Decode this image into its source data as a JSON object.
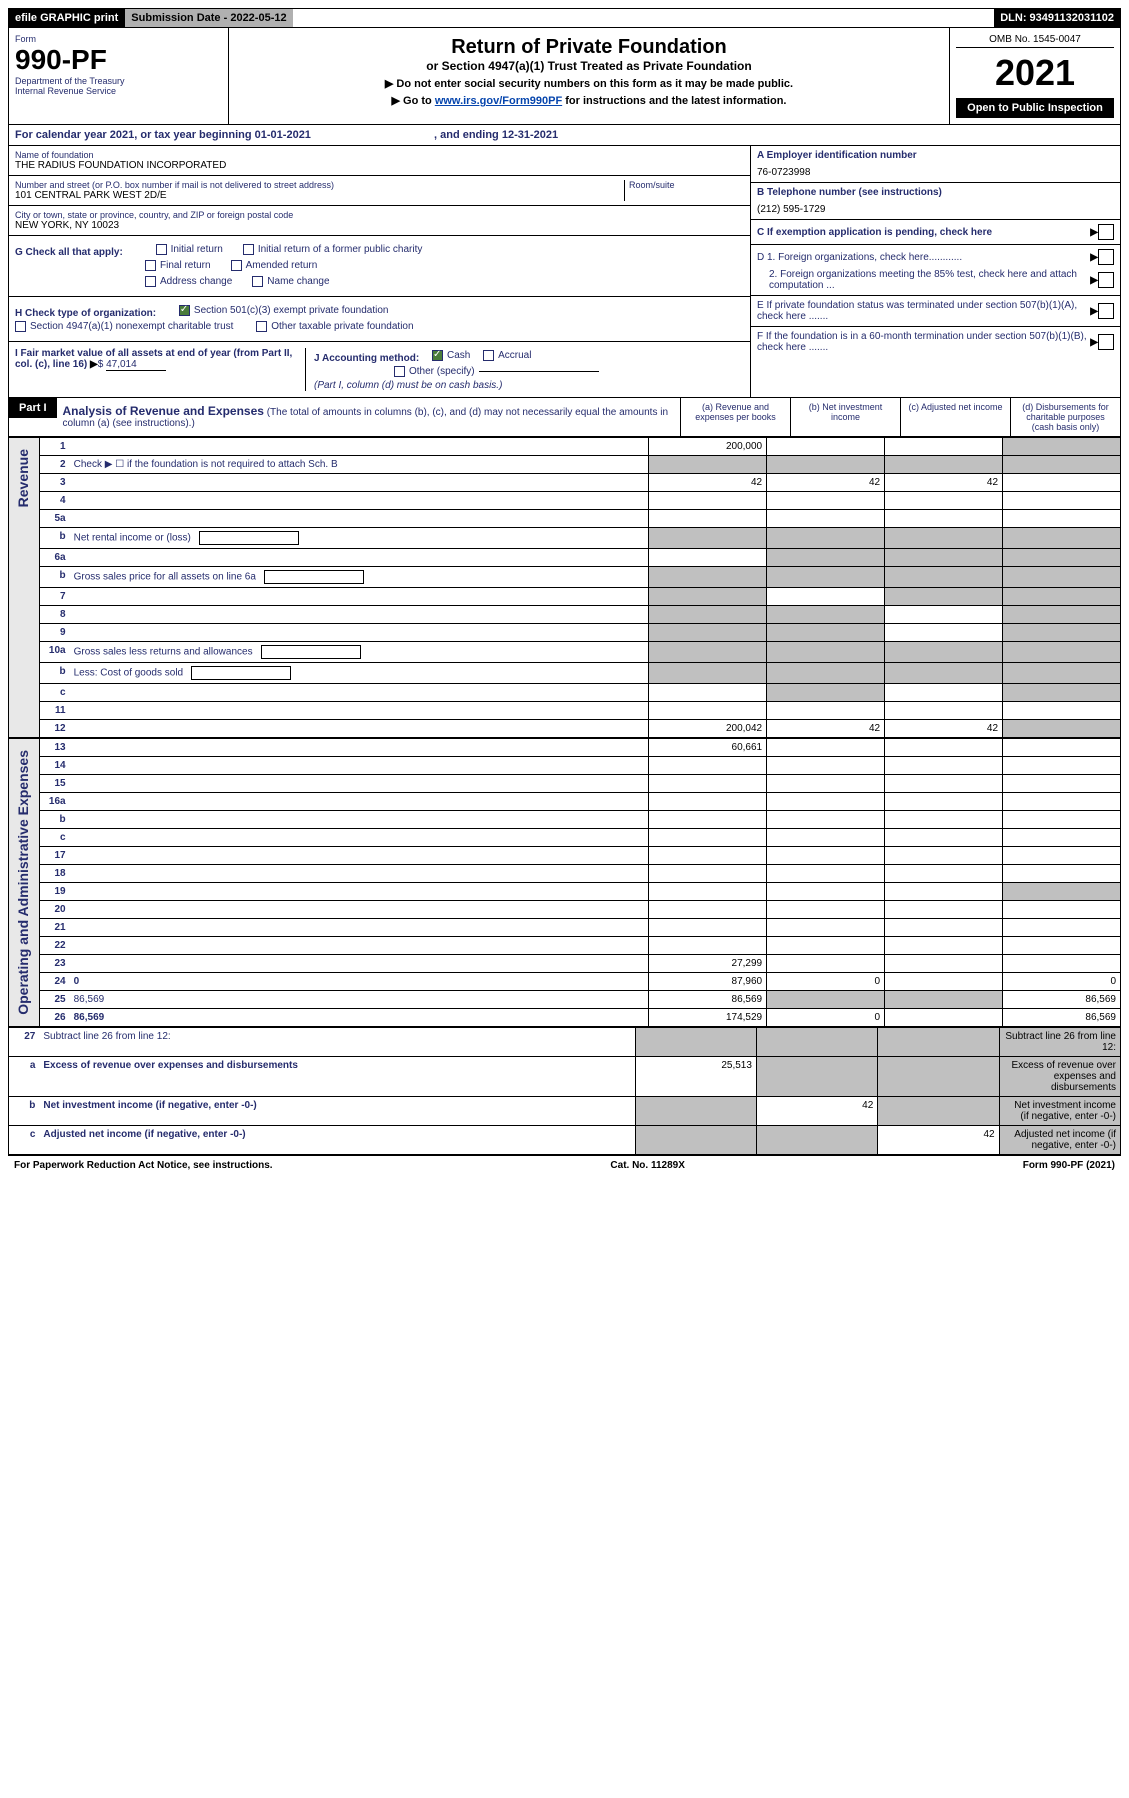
{
  "topbar": {
    "efile": "efile GRAPHIC print",
    "subdate_label": "Submission Date - ",
    "subdate_value": "2022-05-12",
    "dln": "DLN: 93491132031102"
  },
  "header": {
    "form_label": "Form",
    "form_no": "990-PF",
    "dept1": "Department of the Treasury",
    "dept2": "Internal Revenue Service",
    "title": "Return of Private Foundation",
    "subtitle": "or Section 4947(a)(1) Trust Treated as Private Foundation",
    "instr1": "▶ Do not enter social security numbers on this form as it may be made public.",
    "instr2_pre": "▶ Go to ",
    "instr2_link": "www.irs.gov/Form990PF",
    "instr2_post": " for instructions and the latest information.",
    "omb": "OMB No. 1545-0047",
    "year": "2021",
    "open": "Open to Public Inspection"
  },
  "cal_year": {
    "text_pre": "For calendar year 2021, or tax year beginning ",
    "begin": "01-01-2021",
    "text_mid": ", and ending ",
    "end": "12-31-2021"
  },
  "info": {
    "name_label": "Name of foundation",
    "name": "THE RADIUS FOUNDATION INCORPORATED",
    "addr_label": "Number and street (or P.O. box number if mail is not delivered to street address)",
    "addr": "101 CENTRAL PARK WEST 2D/E",
    "room_label": "Room/suite",
    "city_label": "City or town, state or province, country, and ZIP or foreign postal code",
    "city": "NEW YORK, NY  10023",
    "a_label": "A Employer identification number",
    "a_val": "76-0723998",
    "b_label": "B Telephone number (see instructions)",
    "b_val": "(212) 595-1729",
    "c_label": "C If exemption application is pending, check here",
    "d1_label": "D 1. Foreign organizations, check here............",
    "d2_label": "2. Foreign organizations meeting the 85% test, check here and attach computation ...",
    "e_label": "E  If private foundation status was terminated under section 507(b)(1)(A), check here .......",
    "f_label": "F  If the foundation is in a 60-month termination under section 507(b)(1)(B), check here .......",
    "g_label": "G Check all that apply:",
    "g_opts": [
      "Initial return",
      "Initial return of a former public charity",
      "Final return",
      "Amended return",
      "Address change",
      "Name change"
    ],
    "h_label": "H Check type of organization:",
    "h_opts": [
      "Section 501(c)(3) exempt private foundation",
      "Section 4947(a)(1) nonexempt charitable trust",
      "Other taxable private foundation"
    ],
    "i_label": "I Fair market value of all assets at end of year (from Part II, col. (c), line 16)",
    "i_val": "47,014",
    "j_label": "J Accounting method:",
    "j_opts": [
      "Cash",
      "Accrual",
      "Other (specify)"
    ],
    "j_note": "(Part I, column (d) must be on cash basis.)"
  },
  "part1": {
    "hdr": "Part I",
    "title": "Analysis of Revenue and Expenses",
    "title_note": " (The total of amounts in columns (b), (c), and (d) may not necessarily equal the amounts in column (a) (see instructions).)",
    "col_a": "(a)   Revenue and expenses per books",
    "col_b": "(b)   Net investment income",
    "col_c": "(c)   Adjusted net income",
    "col_d": "(d)   Disbursements for charitable purposes (cash basis only)"
  },
  "sections": {
    "revenue": "Revenue",
    "opex": "Operating and Administrative Expenses"
  },
  "lines": [
    {
      "n": "1",
      "d": "",
      "a": "200,000",
      "b": "",
      "c": "",
      "d_grey": true
    },
    {
      "n": "2",
      "d": "Check ▶ ☐ if the foundation is not required to attach Sch. B",
      "nocols": true
    },
    {
      "n": "3",
      "d": "",
      "a": "42",
      "b": "42",
      "c": "42"
    },
    {
      "n": "4",
      "d": "",
      "a": "",
      "b": "",
      "c": ""
    },
    {
      "n": "5a",
      "d": "",
      "a": "",
      "b": "",
      "c": ""
    },
    {
      "n": "b",
      "d": "Net rental income or (loss)",
      "nocols": true,
      "inline_box": true
    },
    {
      "n": "6a",
      "d": "",
      "a": "",
      "b": "",
      "c": "",
      "bcd_grey": true
    },
    {
      "n": "b",
      "d": "Gross sales price for all assets on line 6a",
      "nocols": true,
      "inline_box": true
    },
    {
      "n": "7",
      "d": "",
      "a": "",
      "b": "",
      "c": "",
      "a_grey": true,
      "cd_grey": true
    },
    {
      "n": "8",
      "d": "",
      "a": "",
      "b": "",
      "c": "",
      "ab_grey": true,
      "d_grey": true
    },
    {
      "n": "9",
      "d": "",
      "a": "",
      "b": "",
      "c": "",
      "ab_grey": true,
      "d_grey": true
    },
    {
      "n": "10a",
      "d": "Gross sales less returns and allowances",
      "nocols": true,
      "inline_box": true
    },
    {
      "n": "b",
      "d": "Less: Cost of goods sold",
      "nocols": true,
      "inline_box": true
    },
    {
      "n": "c",
      "d": "",
      "a": "",
      "b": "",
      "c": "",
      "b_grey": true,
      "d_grey": true
    },
    {
      "n": "11",
      "d": "",
      "a": "",
      "b": "",
      "c": ""
    },
    {
      "n": "12",
      "d": "",
      "a": "200,042",
      "b": "42",
      "c": "42",
      "bold": true,
      "d_grey": true
    }
  ],
  "oplines": [
    {
      "n": "13",
      "d": "",
      "a": "60,661",
      "b": "",
      "c": ""
    },
    {
      "n": "14",
      "d": "",
      "a": "",
      "b": "",
      "c": ""
    },
    {
      "n": "15",
      "d": "",
      "a": "",
      "b": "",
      "c": ""
    },
    {
      "n": "16a",
      "d": "",
      "a": "",
      "b": "",
      "c": ""
    },
    {
      "n": "b",
      "d": "",
      "a": "",
      "b": "",
      "c": ""
    },
    {
      "n": "c",
      "d": "",
      "a": "",
      "b": "",
      "c": ""
    },
    {
      "n": "17",
      "d": "",
      "a": "",
      "b": "",
      "c": ""
    },
    {
      "n": "18",
      "d": "",
      "a": "",
      "b": "",
      "c": ""
    },
    {
      "n": "19",
      "d": "",
      "a": "",
      "b": "",
      "c": "",
      "d_grey": true
    },
    {
      "n": "20",
      "d": "",
      "a": "",
      "b": "",
      "c": ""
    },
    {
      "n": "21",
      "d": "",
      "a": "",
      "b": "",
      "c": ""
    },
    {
      "n": "22",
      "d": "",
      "a": "",
      "b": "",
      "c": ""
    },
    {
      "n": "23",
      "d": "",
      "a": "27,299",
      "b": "",
      "c": ""
    },
    {
      "n": "24",
      "d": "0",
      "a": "87,960",
      "b": "0",
      "c": "",
      "bold": true
    },
    {
      "n": "25",
      "d": "86,569",
      "a": "86,569",
      "b": "",
      "c": "",
      "bc_grey": true
    },
    {
      "n": "26",
      "d": "86,569",
      "a": "174,529",
      "b": "0",
      "c": "",
      "bold": true
    }
  ],
  "botlines": [
    {
      "n": "27",
      "d": "Subtract line 26 from line 12:",
      "allgrey": true
    },
    {
      "n": "a",
      "d": "Excess of revenue over expenses and disbursements",
      "a": "25,513",
      "bold": true,
      "bcd_grey": true
    },
    {
      "n": "b",
      "d": "Net investment income (if negative, enter -0-)",
      "b": "42",
      "bold": true,
      "a_grey": true,
      "cd_grey": true
    },
    {
      "n": "c",
      "d": "Adjusted net income (if negative, enter -0-)",
      "c": "42",
      "bold": true,
      "ab_grey": true,
      "d_grey": true
    }
  ],
  "footer": {
    "left": "For Paperwork Reduction Act Notice, see instructions.",
    "mid": "Cat. No. 11289X",
    "right": "Form 990-PF (2021)"
  }
}
